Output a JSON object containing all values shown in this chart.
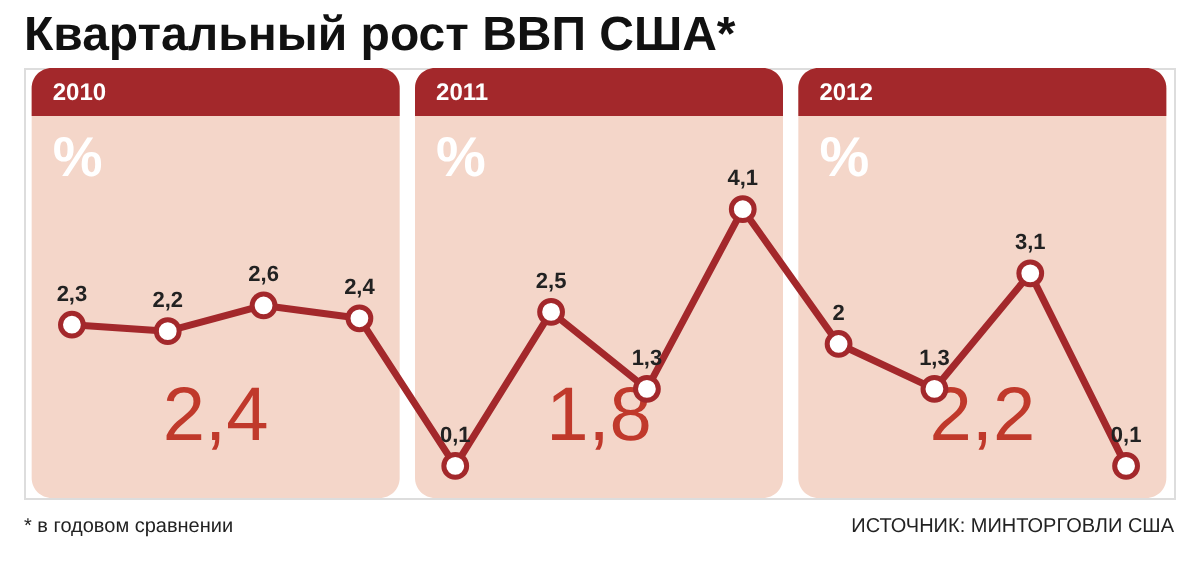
{
  "chart_data": {
    "type": "line",
    "title": "Квартальный рост ВВП США*",
    "categories": [
      null,
      null,
      null,
      null,
      null,
      null,
      null,
      null,
      null,
      null,
      null,
      null
    ],
    "series": [
      {
        "color": "#a3282b",
        "values": [
          2.3,
          2.2,
          2.6,
          2.4,
          0.1,
          2.5,
          1.3,
          4.1,
          2,
          1.3,
          3.1,
          0.1
        ],
        "value_labels": [
          "2,3",
          "2,2",
          "2,6",
          "2,4",
          "0,1",
          "2,5",
          "1,3",
          "4,1",
          "2",
          "1,3",
          "3,1",
          "0,1"
        ]
      }
    ],
    "marker": "circle",
    "line_style": "solid",
    "annotations": [
      "2010",
      "%",
      "2,4",
      "2011",
      "%",
      "1,8",
      "2012",
      "%",
      "2,2",
      "* в годовом сравнении",
      "ИСТОЧНИК: МИНТОРГОВЛИ США"
    ]
  }
}
